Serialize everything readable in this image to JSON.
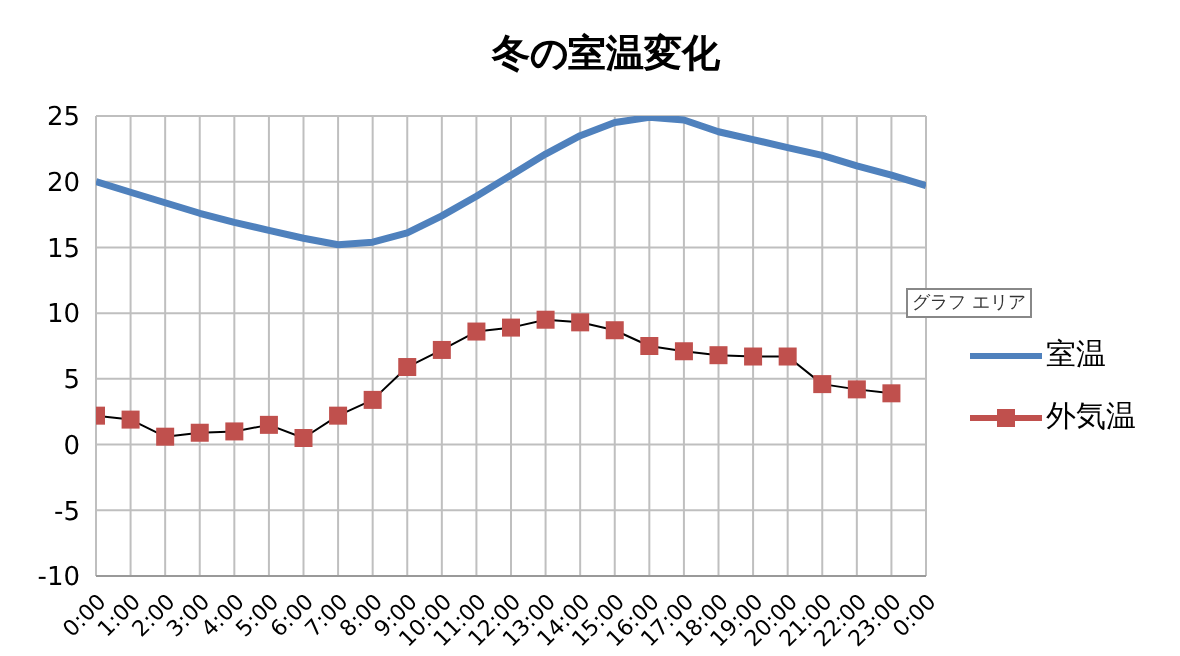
{
  "chart_data": {
    "type": "line",
    "title": "冬の室温変化",
    "categories": [
      "0:00",
      "1:00",
      "2:00",
      "3:00",
      "4:00",
      "5:00",
      "6:00",
      "7:00",
      "8:00",
      "9:00",
      "10:00",
      "11:00",
      "12:00",
      "13:00",
      "14:00",
      "15:00",
      "16:00",
      "17:00",
      "18:00",
      "19:00",
      "20:00",
      "21:00",
      "22:00",
      "23:00",
      "0:00"
    ],
    "series": [
      {
        "name": "室温",
        "color": "#4f81bd",
        "marker": "none",
        "values": [
          20,
          19.2,
          18.4,
          17.6,
          16.9,
          16.3,
          15.7,
          15.2,
          15.4,
          16.1,
          17.4,
          18.9,
          20.5,
          22.1,
          23.5,
          24.5,
          24.9,
          24.7,
          23.8,
          23.2,
          22.6,
          22.0,
          21.2,
          20.5,
          19.7
        ]
      },
      {
        "name": "外気温",
        "color": "#c0504d",
        "marker": "square",
        "values": [
          2.2,
          1.9,
          0.6,
          0.9,
          1.0,
          1.5,
          0.5,
          2.2,
          3.4,
          5.9,
          7.2,
          8.6,
          8.9,
          9.5,
          9.3,
          8.7,
          7.5,
          7.1,
          6.8,
          6.7,
          6.7,
          4.6,
          4.2,
          3.9,
          null
        ]
      }
    ],
    "ylim": [
      -10,
      25
    ],
    "yticks": [
      -10,
      -5,
      0,
      5,
      10,
      15,
      20,
      25
    ],
    "grid": true,
    "legend": "right",
    "annotations": [
      "グラフ エリア"
    ]
  }
}
